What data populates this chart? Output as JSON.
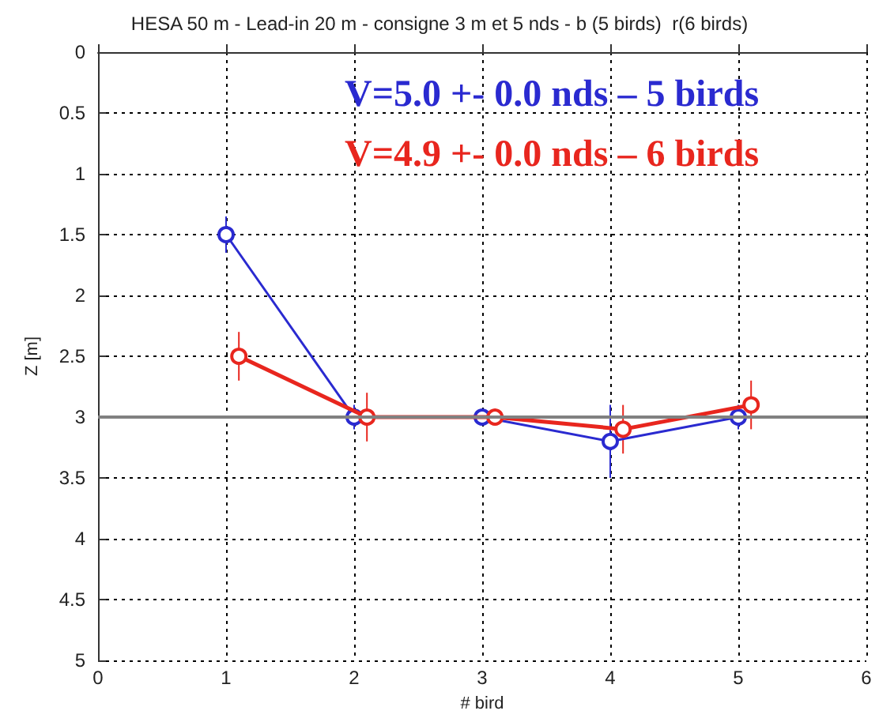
{
  "chart_data": {
    "type": "line",
    "title": "HESA 50 m - Lead-in 20 m - consigne 3 m et 5 nds - b (5 birds)  r(6 birds)",
    "xlabel": "# bird",
    "ylabel": "Z [m]",
    "annotations": [
      "V=5.0 +- 0.0 nds – 5 birds",
      "V=4.9 +- 0.0 nds – 6 birds"
    ],
    "series": [
      {
        "color": "#2a2ad0",
        "x": [
          1,
          2,
          3,
          4,
          5
        ],
        "values": [
          1.5,
          3.0,
          3.0,
          3.2,
          3.0
        ],
        "errors": [
          0.15,
          0.1,
          0.05,
          0.3,
          0.1
        ]
      },
      {
        "color": "#e8261e",
        "x": [
          1.1,
          2.1,
          3.1,
          4.1,
          5.1
        ],
        "values": [
          2.5,
          3.0,
          3.0,
          3.1,
          2.9
        ],
        "errors": [
          0.2,
          0.2,
          0.05,
          0.2,
          0.2
        ]
      }
    ],
    "xlim": [
      0,
      6
    ],
    "xticks": [
      0,
      1,
      2,
      3,
      4,
      5,
      6
    ],
    "ylim": [
      5,
      0
    ],
    "yticks": [
      0,
      0.5,
      1,
      1.5,
      2,
      2.5,
      3,
      3.5,
      4,
      4.5,
      5
    ],
    "ref_lines": [
      {
        "axis": "y",
        "value": 3,
        "color": "#808080"
      }
    ],
    "grid": true,
    "marker": "circle",
    "line_style": "solid"
  }
}
